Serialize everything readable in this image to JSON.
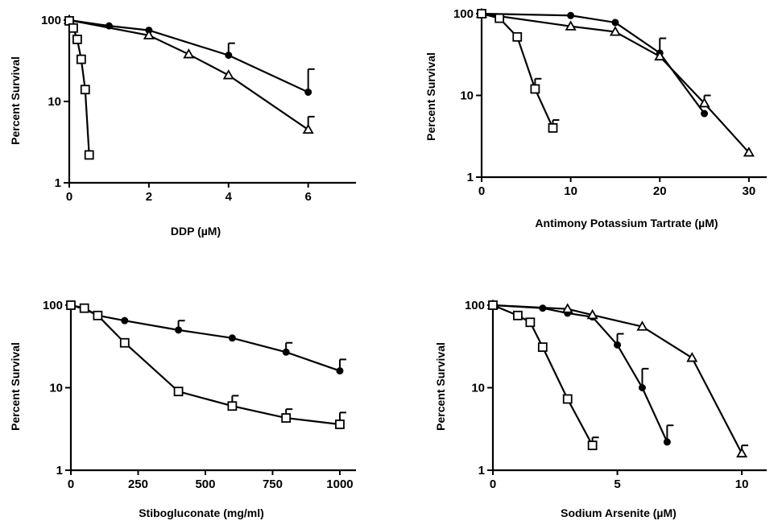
{
  "chart_data": [
    {
      "type": "line",
      "xlabel": "DDP (µM)",
      "ylabel": "Percent Survival",
      "yscale": "log",
      "xlim": [
        0,
        7.2
      ],
      "ylim": [
        1,
        100
      ],
      "xticks": [
        0,
        2,
        4,
        6
      ],
      "yticks": [
        1,
        10,
        100
      ],
      "series": [
        {
          "marker": "circle",
          "x": [
            0,
            1,
            2,
            4,
            6
          ],
          "y": [
            100,
            85,
            75,
            37,
            13
          ],
          "err": [
            null,
            null,
            null,
            52,
            25
          ]
        },
        {
          "marker": "triangle",
          "x": [
            0,
            2,
            3,
            4,
            6
          ],
          "y": [
            100,
            65,
            38,
            21,
            4.5
          ],
          "err": [
            null,
            null,
            null,
            null,
            6.5
          ]
        },
        {
          "marker": "square",
          "x": [
            0,
            0.1,
            0.2,
            0.3,
            0.4,
            0.5
          ],
          "y": [
            98,
            80,
            58,
            33,
            14,
            2.2
          ],
          "err": [
            null,
            null,
            null,
            null,
            null,
            null
          ]
        }
      ]
    },
    {
      "type": "line",
      "xlabel": "Antimony Potassium Tartrate (µM)",
      "ylabel": "Percent Survival",
      "yscale": "log",
      "xlim": [
        0,
        32
      ],
      "ylim": [
        1,
        100
      ],
      "xticks": [
        0,
        10,
        20,
        30
      ],
      "yticks": [
        1,
        10,
        100
      ],
      "series": [
        {
          "marker": "circle",
          "x": [
            0,
            10,
            15,
            20,
            25
          ],
          "y": [
            100,
            95,
            78,
            33,
            6
          ],
          "err": [
            null,
            null,
            null,
            50,
            null
          ]
        },
        {
          "marker": "triangle",
          "x": [
            0,
            10,
            15,
            20,
            25,
            30
          ],
          "y": [
            100,
            70,
            60,
            30,
            8,
            2
          ],
          "err": [
            null,
            null,
            null,
            null,
            10,
            null
          ]
        },
        {
          "marker": "square",
          "x": [
            0,
            2,
            4,
            6,
            8
          ],
          "y": [
            100,
            88,
            52,
            12,
            4
          ],
          "err": [
            null,
            null,
            null,
            16,
            5
          ]
        }
      ]
    },
    {
      "type": "line",
      "xlabel": "Stibogluconate (mg/ml)",
      "ylabel": "Percent Survival",
      "yscale": "log",
      "xlim": [
        0,
        1060
      ],
      "ylim": [
        1,
        100
      ],
      "xticks": [
        0,
        250,
        500,
        750,
        1000
      ],
      "yticks": [
        1,
        10,
        100
      ],
      "series": [
        {
          "marker": "circle",
          "x": [
            0,
            50,
            100,
            200,
            400,
            600,
            800,
            1000
          ],
          "y": [
            100,
            90,
            75,
            65,
            50,
            40,
            27,
            16
          ],
          "err": [
            null,
            null,
            null,
            null,
            65,
            null,
            35,
            22
          ]
        },
        {
          "marker": "square",
          "x": [
            0,
            50,
            100,
            200,
            400,
            600,
            800,
            1000
          ],
          "y": [
            100,
            92,
            75,
            35,
            9,
            6,
            4.3,
            3.6
          ],
          "err": [
            null,
            null,
            null,
            null,
            null,
            8,
            5.5,
            5
          ]
        }
      ]
    },
    {
      "type": "line",
      "xlabel": "Sodium Arsenite (µM)",
      "ylabel": "Percent Survival",
      "yscale": "log",
      "xlim": [
        0,
        11
      ],
      "ylim": [
        1,
        100
      ],
      "xticks": [
        0,
        5,
        10
      ],
      "yticks": [
        1,
        10,
        100
      ],
      "series": [
        {
          "marker": "circle",
          "x": [
            0,
            2,
            3,
            4,
            5,
            6,
            7
          ],
          "y": [
            100,
            92,
            80,
            72,
            33,
            10,
            2.2
          ],
          "err": [
            null,
            null,
            null,
            null,
            45,
            17,
            3.5
          ]
        },
        {
          "marker": "triangle",
          "x": [
            0,
            3,
            4,
            6,
            8,
            10
          ],
          "y": [
            100,
            90,
            76,
            55,
            23,
            1.6
          ],
          "err": [
            null,
            null,
            null,
            null,
            null,
            2
          ]
        },
        {
          "marker": "square",
          "x": [
            0,
            1,
            1.5,
            2,
            3,
            4
          ],
          "y": [
            100,
            75,
            62,
            31,
            7.3,
            2
          ],
          "err": [
            null,
            null,
            null,
            null,
            null,
            2.5
          ]
        }
      ]
    }
  ]
}
